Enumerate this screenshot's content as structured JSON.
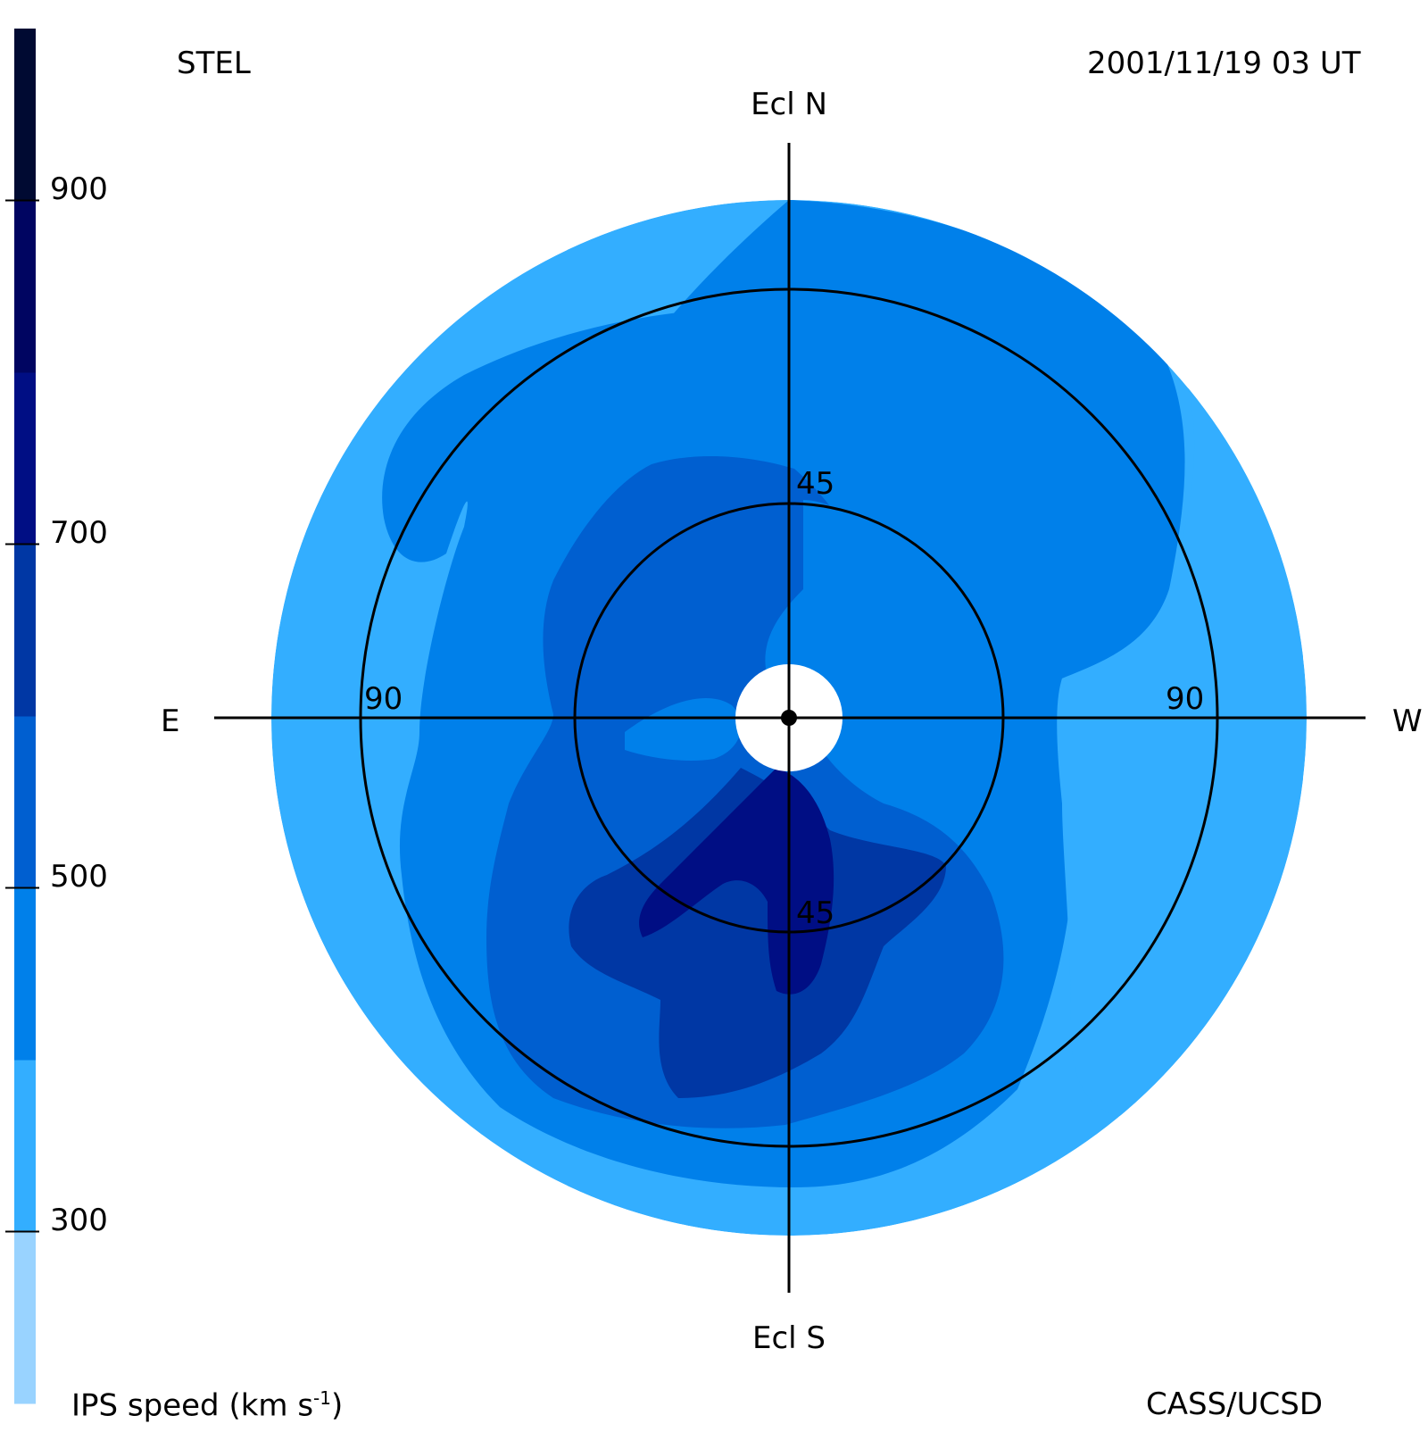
{
  "header": {
    "left": "STEL",
    "right": "2001/11/19 03 UT"
  },
  "footer": {
    "colorbar_label": "IPS speed (km s",
    "colorbar_label_sup": "-1",
    "colorbar_label_end": ")",
    "credit": "CASS/UCSD"
  },
  "directions": {
    "north": "Ecl N",
    "south": "Ecl S",
    "east": "E",
    "west": "W"
  },
  "ring_labels": {
    "inner_top": "45",
    "inner_bottom": "45",
    "outer_left": "90",
    "outer_right": "90"
  },
  "chart_data": {
    "type": "heatmap",
    "projection": "polar sky map (elongation from Sun)",
    "elongation_rings_deg": [
      45,
      90
    ],
    "colorbar": {
      "levels": [
        200,
        300,
        400,
        500,
        600,
        700,
        800,
        900,
        1000
      ],
      "band_colors": [
        "#99d3ff",
        "#33aeff",
        "#0080ea",
        "#005fd0",
        "#0037a4",
        "#000e84",
        "#000561",
        "#000a32"
      ],
      "ticks": [
        "300",
        "500",
        "700",
        "900"
      ],
      "tick_values": [
        300,
        500,
        700,
        900
      ]
    }
  }
}
